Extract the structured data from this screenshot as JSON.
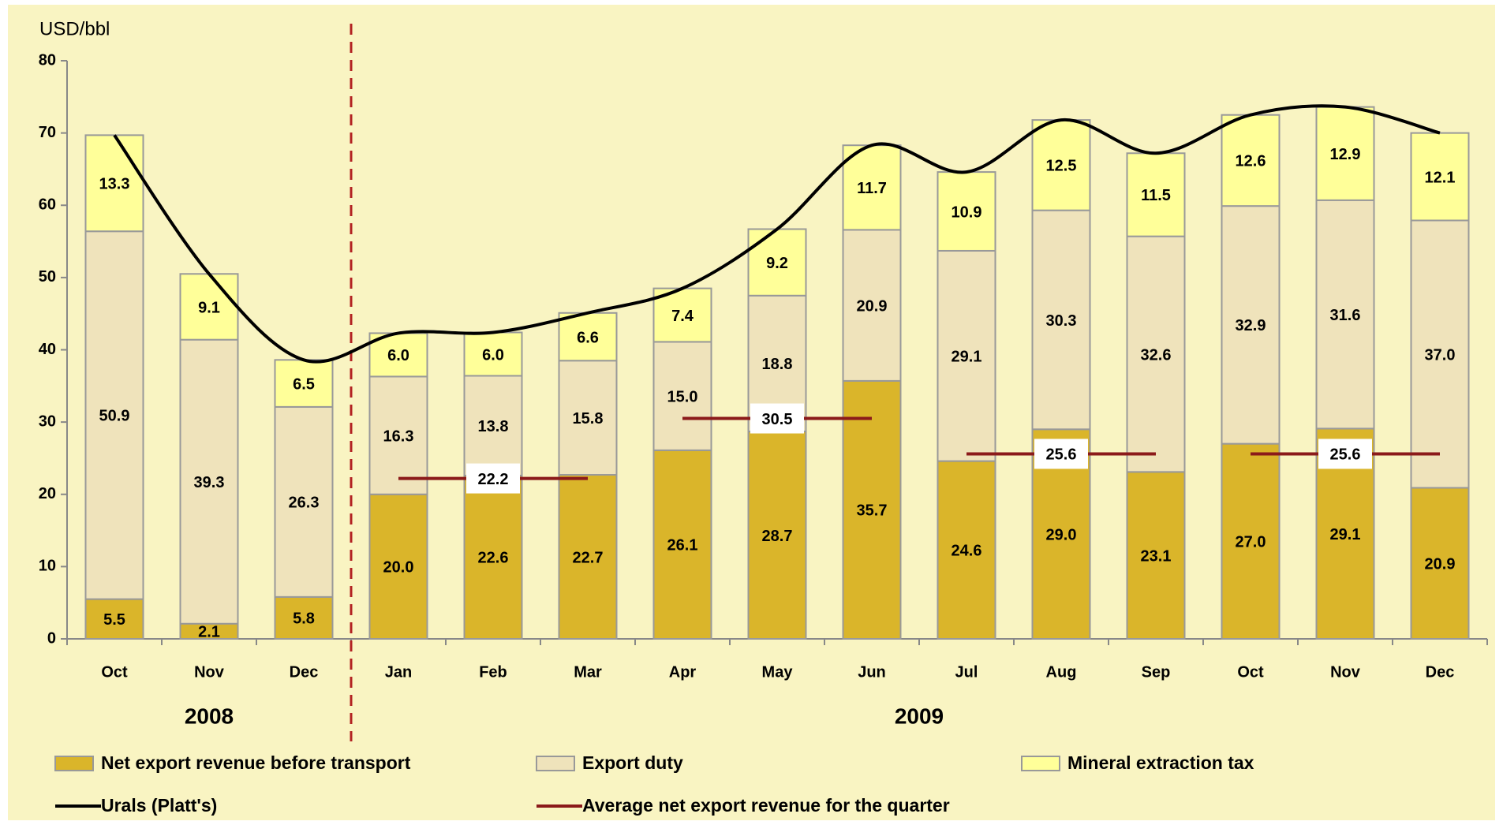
{
  "chart_data": {
    "type": "bar",
    "y_axis_label": "USD/bbl",
    "categories": [
      "Oct",
      "Nov",
      "Dec",
      "Jan",
      "Feb",
      "Mar",
      "Apr",
      "May",
      "Jun",
      "Jul",
      "Aug",
      "Sep",
      "Oct",
      "Nov",
      "Dec"
    ],
    "groups": [
      {
        "label": "2008",
        "count": 3
      },
      {
        "label": "2009",
        "count": 12
      }
    ],
    "stacked": true,
    "series": [
      {
        "name": "Net export revenue before transport",
        "color": "#dab52a",
        "values": [
          5.5,
          2.1,
          5.8,
          20.0,
          22.6,
          22.7,
          26.1,
          28.7,
          35.7,
          24.6,
          29.0,
          23.1,
          27.0,
          29.1,
          20.9
        ],
        "value_labels": [
          "5.5",
          "2.1",
          "5.8",
          "20.0",
          "22.6",
          "22.7",
          "26.1",
          "28.7",
          "35.7",
          "24.6",
          "29.0",
          "23.1",
          "27.0",
          "29.1",
          "20.9"
        ]
      },
      {
        "name": "Export duty",
        "color": "#efe3bb",
        "values": [
          50.9,
          39.3,
          26.3,
          16.3,
          13.8,
          15.8,
          15.0,
          18.8,
          20.9,
          29.1,
          30.3,
          32.6,
          32.9,
          31.6,
          37.0
        ],
        "value_labels": [
          "50.9",
          "39.3",
          "26.3",
          "16.3",
          "13.8",
          "15.8",
          "15.0",
          "18.8",
          "20.9",
          "29.1",
          "30.3",
          "32.6",
          "32.9",
          "31.6",
          "37.0"
        ]
      },
      {
        "name": "Mineral extraction tax",
        "color": "#ffff99",
        "values": [
          13.3,
          9.1,
          6.5,
          6.0,
          6.0,
          6.6,
          7.4,
          9.2,
          11.7,
          10.9,
          12.5,
          11.5,
          12.6,
          12.9,
          12.1
        ],
        "value_labels": [
          "13.3",
          "9.1",
          "6.5",
          "6.0",
          "6.0",
          "6.6",
          "7.4",
          "9.2",
          "11.7",
          "10.9",
          "12.5",
          "11.5",
          "12.6",
          "12.9",
          "12.1"
        ]
      },
      {
        "name": "Urals (Platt's)",
        "type": "line",
        "color": "#000000",
        "values": [
          69.7,
          50.5,
          38.6,
          42.3,
          42.4,
          45.1,
          48.5,
          56.7,
          68.3,
          64.6,
          71.8,
          67.2,
          72.5,
          73.6,
          70.0
        ]
      },
      {
        "name": "Average net export revenue for the quarter",
        "type": "quarter_line",
        "color": "#8b1a1a",
        "values": [
          null,
          null,
          null,
          22.2,
          22.2,
          22.2,
          30.5,
          30.5,
          30.5,
          25.6,
          25.6,
          25.6,
          25.6,
          25.6,
          25.6
        ]
      }
    ],
    "ylim": [
      0,
      80
    ],
    "yticks": [
      0,
      10,
      20,
      30,
      40,
      50,
      60,
      70,
      80
    ]
  }
}
